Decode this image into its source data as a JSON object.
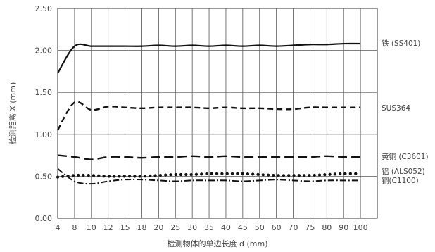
{
  "chart_data": {
    "type": "line",
    "title": "",
    "xlabel": "检测物体的单边长度 d (mm)",
    "ylabel": "检测距离 X (mm)",
    "x": [
      "4",
      "8",
      "10",
      "12",
      "15",
      "18",
      "20",
      "25",
      "30",
      "35",
      "40",
      "45",
      "50",
      "60",
      "70",
      "75",
      "80",
      "90",
      "100"
    ],
    "ylim": [
      0,
      2.5
    ],
    "yticks": [
      "0.00",
      "0.50",
      "1.00",
      "1.50",
      "2.00",
      "2.50"
    ],
    "grid": true,
    "legend": "inline-right",
    "series": [
      {
        "name": "铁 (SS401)",
        "style": "solid",
        "values": [
          1.73,
          2.05,
          2.05,
          2.05,
          2.05,
          2.05,
          2.06,
          2.05,
          2.06,
          2.05,
          2.06,
          2.05,
          2.06,
          2.05,
          2.06,
          2.07,
          2.07,
          2.08,
          2.08
        ]
      },
      {
        "name": "SUS364",
        "style": "dash",
        "values": [
          1.05,
          1.38,
          1.29,
          1.33,
          1.32,
          1.31,
          1.32,
          1.32,
          1.32,
          1.31,
          1.32,
          1.31,
          1.31,
          1.3,
          1.3,
          1.32,
          1.32,
          1.32,
          1.32
        ]
      },
      {
        "name": "黄铜 (C3601)",
        "style": "longdash",
        "values": [
          0.75,
          0.73,
          0.7,
          0.73,
          0.73,
          0.72,
          0.73,
          0.73,
          0.74,
          0.73,
          0.74,
          0.73,
          0.73,
          0.73,
          0.73,
          0.73,
          0.74,
          0.73,
          0.73
        ]
      },
      {
        "name": "铝 (ALS052)",
        "style": "dot",
        "values": [
          0.49,
          0.51,
          0.51,
          0.5,
          0.5,
          0.5,
          0.51,
          0.52,
          0.52,
          0.53,
          0.53,
          0.53,
          0.52,
          0.51,
          0.51,
          0.51,
          0.52,
          0.53,
          0.53
        ]
      },
      {
        "name": "铜(C1100)",
        "style": "dashdot",
        "values": [
          0.59,
          0.44,
          0.41,
          0.44,
          0.46,
          0.46,
          0.45,
          0.44,
          0.45,
          0.45,
          0.45,
          0.44,
          0.45,
          0.46,
          0.45,
          0.44,
          0.45,
          0.45,
          0.45
        ]
      }
    ]
  }
}
